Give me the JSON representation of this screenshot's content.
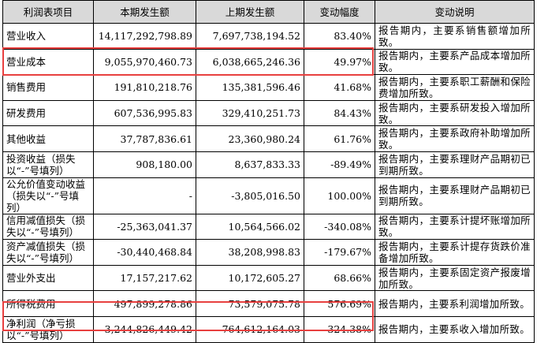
{
  "table": {
    "header": [
      "利润表项目",
      "本期发生额",
      "上期发生额",
      "变动幅度",
      "变动说明"
    ],
    "rows": [
      [
        "营业收入",
        "14,117,292,798.89",
        "7,697,738,194.52",
        "83.40%",
        "报告期内，主要系销售额增加所致。"
      ],
      [
        "营业成本",
        "9,055,970,460.73",
        "6,038,665,246.36",
        "49.97%",
        "报告期内，主要系产品成本增加所致。"
      ],
      [
        "销售费用",
        "191,810,218.76",
        "135,381,596.46",
        "41.68%",
        "报告期内，主要系职工薪酬和保险费增加所致。"
      ],
      [
        "研发费用",
        "607,536,995.83",
        "329,410,251.73",
        "84.43%",
        "报告期内，主要系研发投入增加所致。"
      ],
      [
        "其他收益",
        "37,787,836.61",
        "23,360,980.24",
        "61.76%",
        "报告期内，主要系政府补助增加所致。"
      ],
      [
        "投资收益（损失以“-”号填列）",
        "908,180.00",
        "8,637,833.33",
        "-89.49%",
        "报告期内，主要系理财产品期初已到期所致。"
      ],
      [
        "公允价值变动收益（损失以“-”号填列）",
        "-",
        "-3,805,016.50",
        "100.00%",
        "报告期内，主要系理财产品期初已到期所致。"
      ],
      [
        "信用减值损失（损失以“-”号填列）",
        "-25,363,041.37",
        "10,564,566.02",
        "-340.08%",
        "报告期内，主要系计提坏账增加所致。"
      ],
      [
        "资产减值损失（损失以“-”号填列）",
        "-30,440,468.84",
        "38,208,998.83",
        "-179.67%",
        "报告期内，主要系计提存货跌价准备增加所致。"
      ],
      [
        "营业外支出",
        "17,157,217.62",
        "10,172,605.27",
        "68.66%",
        "报告期内，主要系固定资产报废增加所致。"
      ],
      [
        "所得税费用",
        "497,899,278.86",
        "73,579,075.78",
        "576.69%",
        "报告期内，主要系利润增加所致。"
      ],
      [
        "净利润（净亏损以“-”号填列）",
        "3,244,826,449.42",
        "764,612,164.03",
        "324.38%",
        "报告期内，主要系收入增加所致。"
      ]
    ]
  }
}
